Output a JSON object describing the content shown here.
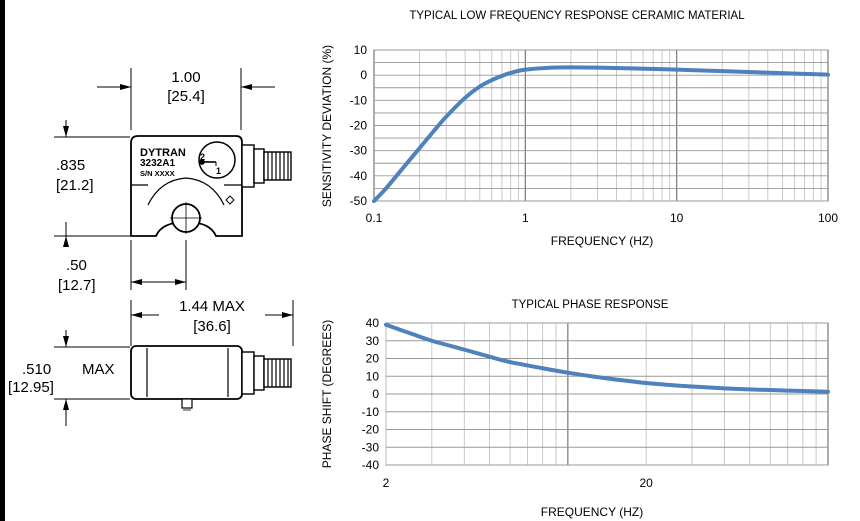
{
  "drawing": {
    "width_in": "1.00",
    "width_mm": "[25.4]",
    "height_in": ".835",
    "height_mm": "[21.2]",
    "hole_in": ".50",
    "hole_mm": "[12.7]",
    "length_in": "1.44 MAX",
    "length_mm": "[36.6]",
    "depth_in": ".510",
    "depth_max": "MAX",
    "depth_mm": "[12.95]",
    "label_brand": "DYTRAN",
    "label_model": "3232A1",
    "label_sn": "S/N XXXX",
    "axis_2": "2",
    "axis_1": "1"
  },
  "chart_data": [
    {
      "type": "line",
      "title": "TYPICAL LOW FREQUENCY RESPONSE CERAMIC MATERIAL",
      "xlabel": "FREQUENCY (HZ)",
      "ylabel": "SENSITIVITY DEVIATION (%)",
      "xscale": "log",
      "xlim": [
        0.1,
        100
      ],
      "ylim": [
        -50,
        10
      ],
      "xticks": [
        "0.1",
        "1",
        "10",
        "100"
      ],
      "yticks": [
        "10",
        "0",
        "-10",
        "-20",
        "-30",
        "-40",
        "-50"
      ],
      "grid": true,
      "color": "#4f81bd",
      "series": [
        {
          "x": [
            0.1,
            0.12,
            0.15,
            0.2,
            0.25,
            0.3,
            0.4,
            0.5,
            0.6,
            0.7,
            0.8,
            1.0,
            1.5,
            2,
            3,
            5,
            10,
            20,
            50,
            100
          ],
          "y": [
            -50,
            -45,
            -38,
            -29,
            -22,
            -16.5,
            -9,
            -4.5,
            -2,
            -0.3,
            0.9,
            2.2,
            3.0,
            3.1,
            3.0,
            2.7,
            2.2,
            1.6,
            0.8,
            0.2
          ]
        }
      ]
    },
    {
      "type": "line",
      "title": "TYPICAL PHASE RESPONSE",
      "xlabel": "FREQUENCY (HZ)",
      "ylabel": "PHASE SHIFT (DEGREES)",
      "xscale": "log",
      "xlim": [
        2,
        100
      ],
      "ylim": [
        -40,
        40
      ],
      "xticks": [
        "2",
        "20"
      ],
      "yticks": [
        "40",
        "30",
        "20",
        "10",
        "0",
        "-10",
        "-20",
        "-30",
        "-40"
      ],
      "grid": true,
      "color": "#4f81bd",
      "series": [
        {
          "x": [
            2,
            2.5,
            3,
            4,
            5,
            6,
            8,
            10,
            13,
            16,
            20,
            25,
            30,
            40,
            50,
            70,
            100
          ],
          "y": [
            39,
            34,
            30,
            25,
            21,
            18,
            14.5,
            12,
            9.5,
            7.8,
            6.2,
            5,
            4.2,
            3.2,
            2.6,
            1.9,
            1.3
          ]
        }
      ]
    }
  ]
}
